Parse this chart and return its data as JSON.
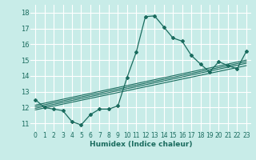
{
  "xlabel": "Humidex (Indice chaleur)",
  "bg_color": "#c8ece8",
  "grid_color": "#ffffff",
  "line_color": "#1a6b5e",
  "xlim": [
    -0.5,
    23.5
  ],
  "ylim": [
    10.5,
    18.5
  ],
  "yticks": [
    11,
    12,
    13,
    14,
    15,
    16,
    17,
    18
  ],
  "xticks": [
    0,
    1,
    2,
    3,
    4,
    5,
    6,
    7,
    8,
    9,
    10,
    11,
    12,
    13,
    14,
    15,
    16,
    17,
    18,
    19,
    20,
    21,
    22,
    23
  ],
  "main_line_x": [
    0,
    1,
    2,
    3,
    4,
    5,
    6,
    7,
    8,
    9,
    10,
    11,
    12,
    13,
    14,
    15,
    16,
    17,
    18,
    19,
    20,
    21,
    22,
    23
  ],
  "main_line_y": [
    12.5,
    12.0,
    11.9,
    11.8,
    11.1,
    10.9,
    11.55,
    11.9,
    11.9,
    12.1,
    13.9,
    15.5,
    17.75,
    17.8,
    17.1,
    16.4,
    16.2,
    15.3,
    14.75,
    14.25,
    14.9,
    14.65,
    14.45,
    15.55
  ],
  "reg_lines": [
    {
      "x": [
        0,
        23
      ],
      "y": [
        11.85,
        14.65
      ]
    },
    {
      "x": [
        0,
        23
      ],
      "y": [
        11.95,
        14.8
      ]
    },
    {
      "x": [
        0,
        23
      ],
      "y": [
        12.05,
        14.9
      ]
    },
    {
      "x": [
        0,
        23
      ],
      "y": [
        12.15,
        15.0
      ]
    }
  ],
  "tick_fontsize": 5.5,
  "xlabel_fontsize": 6.5
}
